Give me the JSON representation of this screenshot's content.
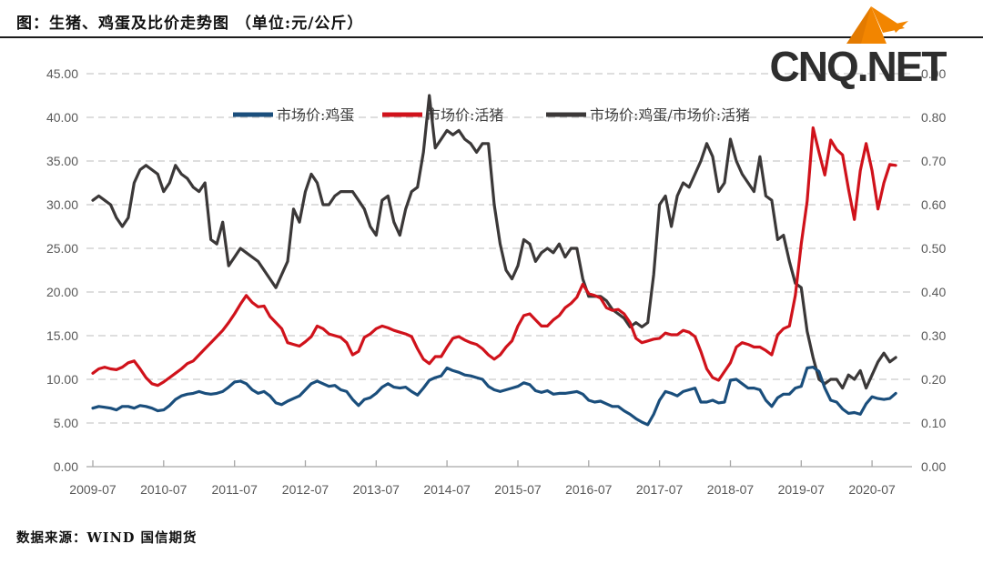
{
  "header": {
    "title": "图：生猪、鸡蛋及比价走势图 （单位:元/公斤）"
  },
  "logo": {
    "text": "CNQ.NET",
    "icon": "origami-bird-icon",
    "icon_color": "#F28500",
    "text_color": "#2e2e2e"
  },
  "footer": {
    "source": "数据来源：WIND 国信期货"
  },
  "chart_data": {
    "type": "line",
    "title": "生猪、鸡蛋及比价走势图",
    "unit": "元/公斤",
    "interval": "monthly",
    "x_monthly_start": "2009-07",
    "x_monthly_end": "2020-11",
    "points": 137,
    "grid": "horizontal-dashed",
    "legend_position": "top-center-overlay",
    "x_tick_labels": [
      "2009-07",
      "2010-07",
      "2011-07",
      "2012-07",
      "2013-07",
      "2014-07",
      "2015-07",
      "2016-07",
      "2017-07",
      "2018-07",
      "2019-07",
      "2020-07"
    ],
    "left_axis": {
      "min": 0,
      "max": 45,
      "step": 5,
      "labels": [
        "45.00",
        "40.00",
        "35.00",
        "30.00",
        "25.00",
        "20.00",
        "15.00",
        "10.00",
        "5.00",
        "0.00"
      ]
    },
    "right_axis": {
      "min": 0,
      "max": 0.9,
      "step": 0.1,
      "labels": [
        "0.90",
        "0.80",
        "0.70",
        "0.60",
        "0.50",
        "0.40",
        "0.30",
        "0.20",
        "0.10",
        "0.00"
      ]
    },
    "series": [
      {
        "name": "市场价:鸡蛋",
        "axis": "left",
        "color": "#1A4E7C",
        "values": [
          6.7,
          6.9,
          6.8,
          6.7,
          6.5,
          6.9,
          6.9,
          6.7,
          7.0,
          6.9,
          6.7,
          6.4,
          6.5,
          7.0,
          7.7,
          8.1,
          8.3,
          8.4,
          8.6,
          8.4,
          8.3,
          8.4,
          8.6,
          9.1,
          9.7,
          9.8,
          9.5,
          8.8,
          8.4,
          8.6,
          8.1,
          7.3,
          7.1,
          7.5,
          7.8,
          8.1,
          8.8,
          9.5,
          9.8,
          9.5,
          9.2,
          9.3,
          8.8,
          8.6,
          7.7,
          7.0,
          7.7,
          7.9,
          8.4,
          9.1,
          9.5,
          9.1,
          9.0,
          9.1,
          8.6,
          8.2,
          9.0,
          9.9,
          10.2,
          10.4,
          11.3,
          11.0,
          10.8,
          10.5,
          10.4,
          10.2,
          10.0,
          9.2,
          8.8,
          8.6,
          8.8,
          9.0,
          9.2,
          9.6,
          9.4,
          8.7,
          8.5,
          8.7,
          8.3,
          8.4,
          8.4,
          8.5,
          8.6,
          8.3,
          7.6,
          7.4,
          7.5,
          7.2,
          6.9,
          6.9,
          6.4,
          6.0,
          5.5,
          5.1,
          4.8,
          6.0,
          7.6,
          8.6,
          8.4,
          8.1,
          8.6,
          8.8,
          9.0,
          7.4,
          7.4,
          7.6,
          7.3,
          7.4,
          9.9,
          10.0,
          9.5,
          9.0,
          9.0,
          8.8,
          7.6,
          6.9,
          7.9,
          8.3,
          8.3,
          9.0,
          9.2,
          11.3,
          11.4,
          10.9,
          9.0,
          7.6,
          7.4,
          6.6,
          6.1,
          6.2,
          6.0,
          7.2,
          8.0,
          7.8,
          7.7,
          7.8,
          8.4
        ]
      },
      {
        "name": "市场价:活猪",
        "axis": "left",
        "color": "#D0121B",
        "values": [
          10.7,
          11.2,
          11.4,
          11.2,
          11.1,
          11.4,
          11.9,
          12.1,
          11.2,
          10.2,
          9.5,
          9.3,
          9.7,
          10.2,
          10.7,
          11.2,
          11.8,
          12.1,
          12.8,
          13.5,
          14.2,
          14.9,
          15.6,
          16.5,
          17.5,
          18.6,
          19.6,
          18.8,
          18.3,
          18.4,
          17.2,
          16.5,
          15.8,
          14.2,
          14.0,
          13.8,
          14.3,
          14.9,
          16.1,
          15.8,
          15.2,
          15.0,
          14.8,
          14.2,
          12.8,
          13.2,
          14.8,
          15.2,
          15.8,
          16.1,
          15.9,
          15.6,
          15.4,
          15.2,
          14.9,
          13.5,
          12.3,
          11.8,
          12.6,
          12.6,
          13.7,
          14.7,
          14.9,
          14.5,
          14.2,
          14.0,
          13.5,
          12.8,
          12.3,
          12.8,
          13.7,
          14.4,
          16.1,
          17.3,
          17.5,
          16.8,
          16.1,
          16.1,
          16.8,
          17.3,
          18.2,
          18.7,
          19.4,
          20.9,
          19.8,
          19.6,
          19.3,
          18.2,
          17.9,
          18.0,
          17.5,
          16.5,
          14.7,
          14.2,
          14.4,
          14.6,
          14.7,
          15.3,
          15.1,
          15.1,
          15.6,
          15.4,
          14.9,
          13.2,
          11.2,
          10.2,
          9.9,
          10.9,
          11.9,
          13.7,
          14.2,
          14.0,
          13.7,
          13.7,
          13.3,
          12.8,
          15.1,
          15.8,
          16.1,
          19.6,
          25.5,
          30.4,
          38.8,
          36.0,
          33.4,
          37.4,
          36.3,
          35.7,
          31.8,
          28.3,
          33.9,
          37.0,
          33.9,
          29.5,
          32.5,
          34.6,
          34.5
        ]
      },
      {
        "name": "市场价:鸡蛋/市场价:活猪",
        "axis": "right",
        "color": "#3B3838",
        "values": [
          0.61,
          0.62,
          0.61,
          0.6,
          0.57,
          0.55,
          0.57,
          0.65,
          0.68,
          0.69,
          0.68,
          0.67,
          0.63,
          0.65,
          0.69,
          0.67,
          0.66,
          0.64,
          0.63,
          0.65,
          0.52,
          0.51,
          0.56,
          0.46,
          0.48,
          0.5,
          0.49,
          0.48,
          0.47,
          0.45,
          0.43,
          0.41,
          0.44,
          0.47,
          0.59,
          0.56,
          0.63,
          0.67,
          0.65,
          0.6,
          0.6,
          0.62,
          0.63,
          0.63,
          0.63,
          0.61,
          0.59,
          0.55,
          0.53,
          0.61,
          0.62,
          0.56,
          0.53,
          0.59,
          0.63,
          0.64,
          0.72,
          0.85,
          0.73,
          0.75,
          0.77,
          0.76,
          0.77,
          0.75,
          0.74,
          0.72,
          0.74,
          0.74,
          0.6,
          0.51,
          0.45,
          0.43,
          0.46,
          0.52,
          0.51,
          0.47,
          0.49,
          0.5,
          0.49,
          0.51,
          0.48,
          0.5,
          0.5,
          0.43,
          0.39,
          0.39,
          0.39,
          0.38,
          0.36,
          0.35,
          0.34,
          0.32,
          0.33,
          0.32,
          0.33,
          0.44,
          0.6,
          0.62,
          0.55,
          0.62,
          0.65,
          0.64,
          0.67,
          0.7,
          0.74,
          0.71,
          0.63,
          0.65,
          0.75,
          0.7,
          0.67,
          0.65,
          0.63,
          0.71,
          0.62,
          0.61,
          0.52,
          0.53,
          0.47,
          0.42,
          0.41,
          0.31,
          0.25,
          0.2,
          0.19,
          0.2,
          0.2,
          0.18,
          0.21,
          0.2,
          0.22,
          0.18,
          0.21,
          0.24,
          0.26,
          0.24,
          0.25
        ]
      }
    ]
  }
}
